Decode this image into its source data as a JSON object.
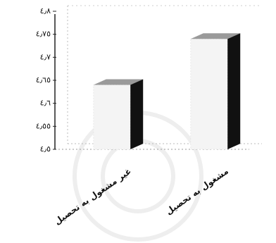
{
  "chart_data": {
    "type": "bar3d",
    "categories": [
      "غیر مشغول به تحصیل",
      "مشغول به تحصیل"
    ],
    "values": [
      4.64,
      4.74
    ],
    "colors": {
      "front": "#f4f4f4",
      "top": "#9a9a9a",
      "side": "#111111"
    },
    "ylim": [
      4.5,
      4.8
    ],
    "yticks": [
      {
        "value": 4.5,
        "label": "٤٫٥"
      },
      {
        "value": 4.55,
        "label": "٤٫٥٥"
      },
      {
        "value": 4.6,
        "label": "٤٫٦"
      },
      {
        "value": 4.65,
        "label": "٤٫٦٥"
      },
      {
        "value": 4.7,
        "label": "٤٫٧"
      },
      {
        "value": 4.75,
        "label": "٤٫٧٥"
      },
      {
        "value": 4.8,
        "label": "٤٫٨"
      }
    ]
  }
}
